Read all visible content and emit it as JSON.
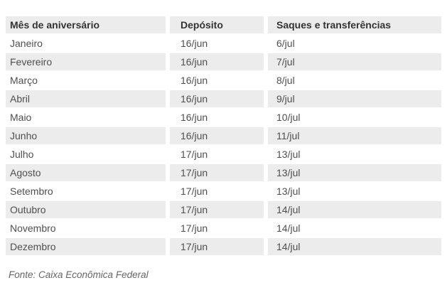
{
  "chart_data": {
    "type": "table",
    "columns": [
      "Mês de aniversário",
      "Depósito",
      "Saques e transferências"
    ],
    "rows": [
      [
        "Janeiro",
        "16/jun",
        "6/jul"
      ],
      [
        "Fevereiro",
        "16/jun",
        "7/jul"
      ],
      [
        "Março",
        "16/jun",
        "8/jul"
      ],
      [
        "Abril",
        "16/jun",
        "9/jul"
      ],
      [
        "Maio",
        "16/jun",
        "10/jul"
      ],
      [
        "Junho",
        "16/jun",
        "11/jul"
      ],
      [
        "Julho",
        "17/jun",
        "13/jul"
      ],
      [
        "Agosto",
        "17/jun",
        "13/jul"
      ],
      [
        "Setembro",
        "17/jun",
        "13/jul"
      ],
      [
        "Outubro",
        "17/jun",
        "14/jul"
      ],
      [
        "Novembro",
        "17/jun",
        "14/jul"
      ],
      [
        "Dezembro",
        "17/jun",
        "14/jul"
      ]
    ],
    "source_note": "Fonte: Caixa Econômica Federal",
    "layout": {
      "striped": true,
      "stripe_pattern": "even-data-rows-shaded"
    }
  },
  "colors": {
    "page_bg": "#ffffff",
    "stripe_bg": "#ececec",
    "header_bg": "#ececec",
    "header_text": "#333333",
    "body_text": "#4f4f4f",
    "source_text": "#666666"
  }
}
